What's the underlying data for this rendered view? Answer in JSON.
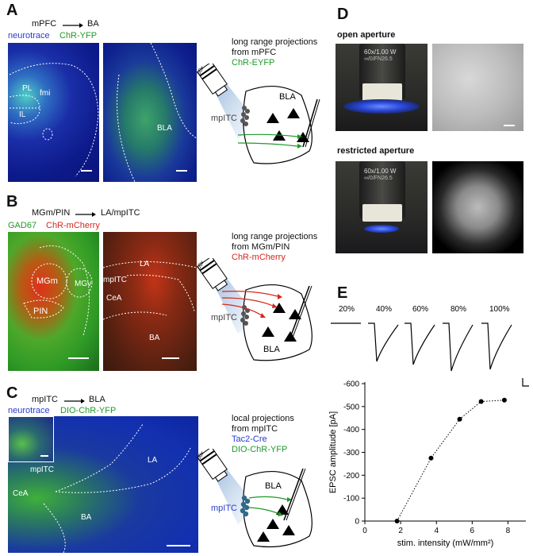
{
  "panelA": {
    "letter": "A",
    "title_from": "mPFC",
    "title_to": "BA",
    "stain1": "neurotrace",
    "stain2": "ChR-YFP",
    "labels": {
      "pl": "PL",
      "fmi": "fmi",
      "il": "IL",
      "bla": "BLA"
    },
    "schematic": {
      "line1": "long range projections",
      "line2": "from mPFC",
      "line3": "ChR-EYFP",
      "mpitc": "mpITC",
      "bla": "BLA",
      "obj": "60x"
    }
  },
  "panelB": {
    "letter": "B",
    "title_from": "MGm/PIN",
    "title_to": "LA/mpITC",
    "stain1": "GAD67",
    "stain2": "ChR-mCherry",
    "labels": {
      "mgm": "MGm",
      "mgv": "MGv",
      "pin": "PIN",
      "la": "LA",
      "mpitc": "mpITC",
      "cea": "CeA",
      "ba": "BA"
    },
    "schematic": {
      "line1": "long range projections",
      "line2": "from MGm/PIN",
      "line3": "ChR-mCherry",
      "mpitc": "mpITC",
      "bla": "BLA",
      "obj": "60x"
    }
  },
  "panelC": {
    "letter": "C",
    "title_from": "mpITC",
    "title_to": "BLA",
    "stain1": "neurotrace",
    "stain2": "DIO-ChR-YFP",
    "labels": {
      "mpitc": "mpITC",
      "cea": "CeA",
      "la": "LA",
      "ba": "BA"
    },
    "schematic": {
      "line1": "local projections",
      "line2": "from mpITC",
      "line3": "Tac2-Cre",
      "line4": "DIO-ChR-YFP",
      "mpitc": "mpITC",
      "bla": "BLA",
      "obj": "60x"
    }
  },
  "panelD": {
    "letter": "D",
    "open": "open aperture",
    "restricted": "restricted aperture",
    "objective_text": "60x/1.00 W",
    "objective_sub": "∞/0/FN26.5"
  },
  "panelE": {
    "letter": "E",
    "trace_labels": [
      "20%",
      "40%",
      "60%",
      "80%",
      "100%"
    ]
  },
  "chart_data": {
    "type": "scatter",
    "title": "",
    "xlabel": "stim. intensity (mW/mm²)",
    "ylabel": "EPSC amplitude [pA]",
    "xlim": [
      0,
      9
    ],
    "ylim": [
      0,
      -600
    ],
    "xticks": [
      "0",
      "2",
      "4",
      "6",
      "8"
    ],
    "yticks": [
      "0",
      "-100",
      "-200",
      "-300",
      "-400",
      "-500",
      "-600"
    ],
    "grid": false,
    "line_style": "dotted",
    "series": [
      {
        "x": [
          1.8,
          3.7,
          5.3,
          6.5,
          7.8
        ],
        "y": [
          0,
          -275,
          -445,
          -522,
          -528
        ]
      }
    ]
  }
}
